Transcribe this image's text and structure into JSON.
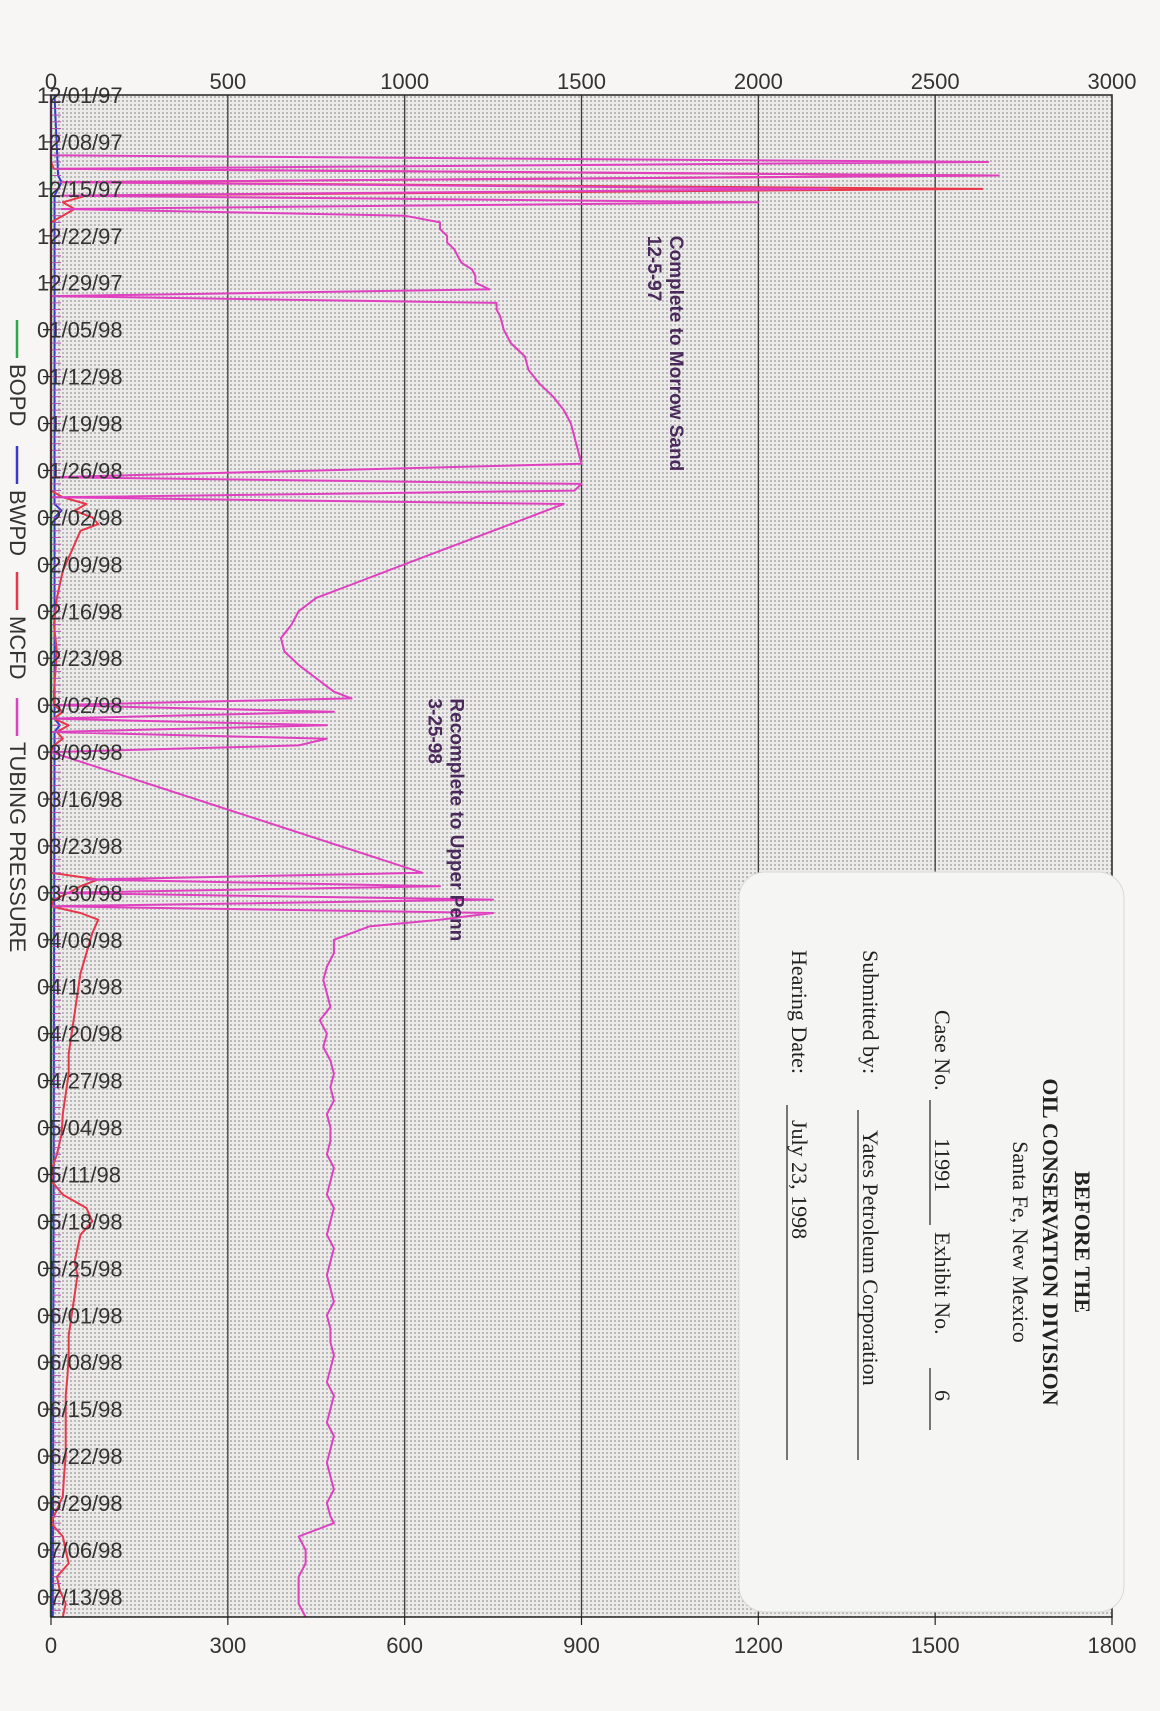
{
  "colors": {
    "bopd": "#2aa84a",
    "bwpd": "#3a3acc",
    "mcfd": "#e8364a",
    "tubing_pressure": "#e040c0",
    "grid": "#3a3a3a"
  },
  "stamp": {
    "line1": "BEFORE THE",
    "line2": "OIL CONSERVATION DIVISION",
    "line3": "Santa Fe, New Mexico",
    "case_label": "Case No.",
    "case_no": "11991",
    "exhibit_label": "Exhibit No.",
    "exhibit_no": "6",
    "submitted_label": "Submitted by:",
    "submitted_by": "Yates Petroleum Corporation",
    "hearing_label": "Hearing Date:",
    "hearing_date": "July 23, 1998"
  },
  "chart_data": {
    "type": "line",
    "x_start": "12/01/97",
    "x_end": "07/16/98",
    "x_tick_labels": [
      "12/01/97",
      "12/08/97",
      "12/15/97",
      "12/22/97",
      "12/29/97",
      "01/05/98",
      "01/12/98",
      "01/19/98",
      "01/26/98",
      "02/02/98",
      "02/09/98",
      "02/16/98",
      "02/23/98",
      "03/02/98",
      "03/09/98",
      "03/16/98",
      "03/23/98",
      "03/30/98",
      "04/06/98",
      "04/13/98",
      "04/20/98",
      "04/27/98",
      "05/04/98",
      "05/11/98",
      "05/18/98",
      "05/25/98",
      "06/01/98",
      "06/08/98",
      "06/15/98",
      "06/22/98",
      "06/29/98",
      "07/06/98",
      "07/13/98"
    ],
    "left_axis": {
      "ylim": [
        0,
        3000
      ],
      "ticks": [
        0,
        500,
        1000,
        1500,
        2000,
        2500,
        3000
      ]
    },
    "right_axis": {
      "ylim": [
        0,
        1800
      ],
      "ticks": [
        0,
        300,
        600,
        900,
        1200,
        1500,
        1800
      ]
    },
    "legend": [
      "BOPD",
      "BWPD",
      "MCFD",
      "TUBING PRESSURE"
    ],
    "annotations": [
      {
        "lines": [
          "Complete to Morrow Sand",
          "12-5-97"
        ],
        "date": "12/22/97",
        "value": 1750
      },
      {
        "lines": [
          "Recomplete to Upper Penn",
          "3-25-98"
        ],
        "date": "03/01/98",
        "value": 1130
      }
    ],
    "series": [
      {
        "name": "TUBING PRESSURE",
        "axis": "left",
        "x": [
          "12/01/97",
          "12/10/97",
          "12/11/97",
          "12/12/97",
          "12/13/97",
          "12/14/97",
          "12/15/97",
          "12/16/97",
          "12/17/97",
          "12/18/97",
          "12/19/97",
          "12/20/97",
          "12/21/97",
          "12/22/97",
          "12/23/97",
          "12/24/97",
          "12/25/97",
          "12/26/97",
          "12/27/97",
          "12/28/97",
          "12/29/97",
          "12/30/97",
          "12/31/97",
          "01/01/98",
          "01/02/98",
          "01/03/98",
          "01/05/98",
          "01/07/98",
          "01/09/98",
          "01/11/98",
          "01/13/98",
          "01/15/98",
          "01/17/98",
          "01/19/98",
          "01/21/98",
          "01/23/98",
          "01/25/98",
          "01/27/98",
          "01/28/98",
          "01/29/98",
          "01/30/98",
          "01/31/98",
          "02/01/98",
          "02/02/98",
          "02/03/98",
          "02/04/98",
          "02/06/98",
          "02/08/98",
          "02/10/98",
          "02/12/98",
          "02/14/98",
          "02/16/98",
          "02/18/98",
          "02/20/98",
          "02/22/98",
          "02/24/98",
          "02/26/98",
          "02/28/98",
          "03/01/98",
          "03/02/98",
          "03/03/98",
          "03/04/98",
          "03/05/98",
          "03/06/98",
          "03/07/98",
          "03/08/98",
          "03/09/98",
          "03/27/98",
          "03/28/98",
          "03/29/98",
          "03/30/98",
          "03/31/98",
          "04/01/98",
          "04/02/98",
          "04/03/98",
          "04/04/98",
          "04/06/98",
          "04/08/98",
          "04/10/98",
          "04/12/98",
          "04/14/98",
          "04/16/98",
          "04/18/98",
          "04/20/98",
          "04/22/98",
          "04/24/98",
          "04/26/98",
          "04/28/98",
          "04/30/98",
          "05/02/98",
          "05/04/98",
          "05/06/98",
          "05/08/98",
          "05/10/98",
          "05/12/98",
          "05/14/98",
          "05/16/98",
          "05/18/98",
          "05/20/98",
          "05/22/98",
          "05/24/98",
          "05/26/98",
          "05/28/98",
          "05/30/98",
          "06/01/98",
          "06/03/98",
          "06/05/98",
          "06/07/98",
          "06/09/98",
          "06/11/98",
          "06/13/98",
          "06/15/98",
          "06/17/98",
          "06/19/98",
          "06/21/98",
          "06/23/98",
          "06/25/98",
          "06/27/98",
          "06/29/98",
          "07/01/98",
          "07/02/98",
          "07/04/98",
          "07/06/98",
          "07/08/98",
          "07/10/98",
          "07/12/98",
          "07/14/98",
          "07/16/98"
        ],
        "values": [
          0,
          0,
          2650,
          20,
          2680,
          30,
          2200,
          30,
          2000,
          30,
          1000,
          1100,
          1100,
          1120,
          1120,
          1140,
          1150,
          1160,
          1190,
          1200,
          1200,
          1240,
          0,
          1260,
          1260,
          1270,
          1280,
          1300,
          1340,
          1350,
          1380,
          1420,
          1450,
          1470,
          1480,
          1490,
          1500,
          0,
          1500,
          1480,
          0,
          1450,
          1400,
          1350,
          1300,
          1250,
          1150,
          1050,
          950,
          850,
          750,
          700,
          680,
          650,
          660,
          700,
          750,
          800,
          850,
          0,
          800,
          0,
          780,
          0,
          780,
          700,
          0,
          1050,
          100,
          1100,
          0,
          1250,
          0,
          1250,
          1100,
          900,
          800,
          800,
          780,
          770,
          780,
          790,
          760,
          780,
          770,
          790,
          800,
          790,
          800,
          780,
          790,
          790,
          780,
          800,
          790,
          780,
          800,
          790,
          780,
          800,
          790,
          780,
          790,
          800,
          780,
          790,
          790,
          800,
          790,
          780,
          800,
          790,
          780,
          800,
          790,
          780,
          790,
          800,
          780,
          790,
          800,
          700,
          720,
          720,
          700,
          700,
          700,
          720
        ]
      },
      {
        "name": "MCFD",
        "axis": "right",
        "x": [
          "12/01/97",
          "12/10/97",
          "12/11/97",
          "12/12/97",
          "12/13/97",
          "12/14/97",
          "12/15/97",
          "12/16/97",
          "12/17/97",
          "12/18/97",
          "12/19/97",
          "12/20/97",
          "01/29/98",
          "01/30/98",
          "01/31/98",
          "02/01/98",
          "02/02/98",
          "02/03/98",
          "02/04/98",
          "02/06/98",
          "02/08/98",
          "02/10/98",
          "02/14/98",
          "02/18/98",
          "02/22/98",
          "02/28/98",
          "03/02/98",
          "03/03/98",
          "03/04/98",
          "03/05/98",
          "03/06/98",
          "03/07/98",
          "03/08/98",
          "03/09/98",
          "03/27/98",
          "03/28/98",
          "03/29/98",
          "03/30/98",
          "03/31/98",
          "04/01/98",
          "04/02/98",
          "04/03/98",
          "04/05/98",
          "04/08/98",
          "04/11/98",
          "04/14/98",
          "04/17/98",
          "04/20/98",
          "04/23/98",
          "04/26/98",
          "04/29/98",
          "05/02/98",
          "05/05/98",
          "05/08/98",
          "05/10/98",
          "05/12/98",
          "05/14/98",
          "05/16/98",
          "05/18/98",
          "05/20/98",
          "05/22/98",
          "05/24/98",
          "05/26/98",
          "05/29/98",
          "06/01/98",
          "06/04/98",
          "06/07/98",
          "06/10/98",
          "06/13/98",
          "06/16/98",
          "06/19/98",
          "06/22/98",
          "06/25/98",
          "06/28/98",
          "07/01/98",
          "07/02/98",
          "07/04/98",
          "07/06/98",
          "07/08/98",
          "07/10/98",
          "07/12/98",
          "07/14/98",
          "07/16/98"
        ],
        "values": [
          0,
          0,
          0,
          5,
          1600,
          20,
          1580,
          60,
          20,
          40,
          20,
          0,
          0,
          20,
          60,
          40,
          70,
          80,
          50,
          40,
          30,
          20,
          10,
          5,
          10,
          5,
          5,
          20,
          5,
          30,
          10,
          20,
          5,
          0,
          0,
          80,
          50,
          30,
          5,
          0,
          50,
          80,
          70,
          60,
          50,
          45,
          40,
          35,
          30,
          30,
          25,
          20,
          18,
          10,
          2,
          1,
          20,
          60,
          70,
          50,
          45,
          40,
          45,
          40,
          35,
          30,
          30,
          28,
          25,
          25,
          25,
          25,
          22,
          20,
          5,
          0,
          20,
          25,
          30,
          10,
          15,
          25,
          20
        ]
      },
      {
        "name": "BWPD",
        "axis": "left",
        "x": [
          "12/01/97",
          "12/13/97",
          "12/14/97",
          "12/15/97",
          "12/16/97",
          "01/31/98",
          "02/01/98",
          "02/02/98",
          "03/04/98",
          "03/05/98",
          "03/06/98",
          "07/16/98"
        ],
        "values": [
          10,
          20,
          30,
          20,
          10,
          10,
          30,
          10,
          10,
          25,
          10,
          5
        ]
      },
      {
        "name": "BOPD",
        "axis": "left",
        "x": [
          "12/01/97",
          "07/16/98"
        ],
        "values": [
          0,
          0
        ]
      }
    ]
  }
}
